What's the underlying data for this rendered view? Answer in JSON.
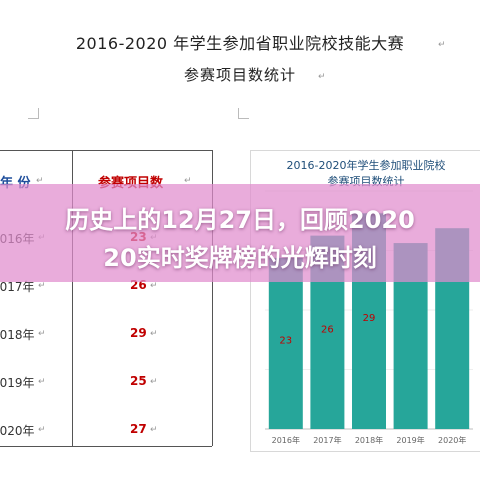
{
  "document": {
    "title": "2016-2020 年学生参加省职业院校技能大赛",
    "subtitle": "参赛项目数统计",
    "table": {
      "headers": [
        "年 份",
        "参赛项目数"
      ],
      "rows": [
        {
          "year": "2016年",
          "count": "23"
        },
        {
          "year": "2017年",
          "count": "26"
        },
        {
          "year": "2018年",
          "count": "29"
        },
        {
          "year": "2019年",
          "count": "25"
        },
        {
          "year": "2020年",
          "count": "27"
        }
      ]
    }
  },
  "chart_data": {
    "type": "bar",
    "title": "2016-2020年学生参加职业院校",
    "subtitle": "参赛项目数统计",
    "categories": [
      "2016年",
      "2017年",
      "2018年",
      "2019年",
      "2020年"
    ],
    "values": [
      23,
      26,
      29,
      25,
      27
    ],
    "visible_value_labels": [
      "23",
      "26",
      "29"
    ],
    "ylim": [
      0,
      32
    ],
    "bar_color": "#26a69a",
    "label_color": "#c00000"
  },
  "overlay": {
    "line1": "历史上的12月27日，回顾2020",
    "line2": "20实时奖牌榜的光辉时刻",
    "color": "#e18ccd"
  },
  "colors": {
    "header_year": "#1f4e9c",
    "header_count": "#c00000",
    "bar": "#26a69a"
  }
}
